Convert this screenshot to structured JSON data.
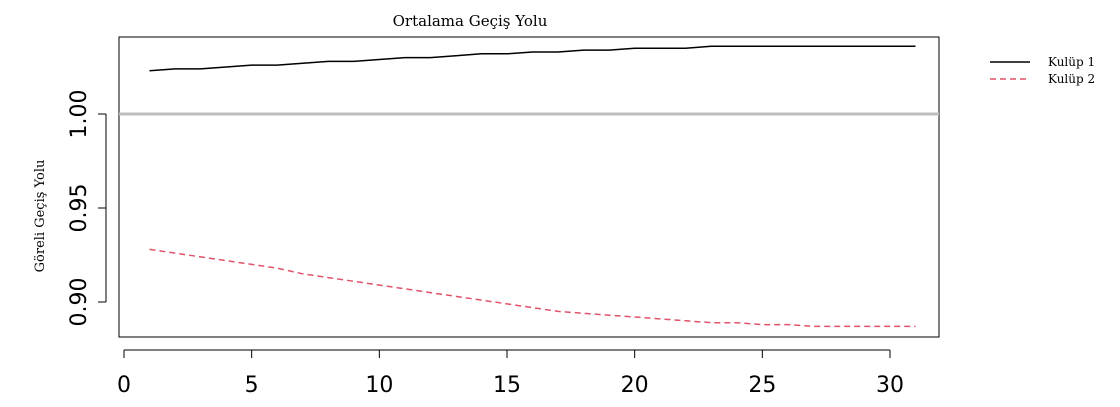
{
  "chart_data": {
    "type": "line",
    "title": "Ortalama Geçiş Yolu",
    "xlabel": "",
    "ylabel": "Göreli Geçiş Yolu",
    "xlim": [
      0,
      32
    ],
    "ylim": [
      0.885,
      1.042
    ],
    "x_ticks": [
      0,
      5,
      10,
      15,
      20,
      25,
      30
    ],
    "y_ticks": [
      0.9,
      0.95,
      1.0
    ],
    "y_tick_labels": [
      "0.90",
      "0.95",
      "1.00"
    ],
    "reference_line": {
      "y": 1.0,
      "color": "#bebebe"
    },
    "grid": false,
    "legend_position": "right",
    "series": [
      {
        "name": "Kulüp 1",
        "color": "#000000",
        "style": "solid",
        "x": [
          1,
          2,
          3,
          4,
          5,
          6,
          7,
          8,
          9,
          10,
          11,
          12,
          13,
          14,
          15,
          16,
          17,
          18,
          19,
          20,
          21,
          22,
          23,
          24,
          25,
          26,
          27,
          28,
          29,
          30,
          31
        ],
        "y": [
          1.023,
          1.024,
          1.024,
          1.025,
          1.026,
          1.026,
          1.027,
          1.028,
          1.028,
          1.029,
          1.03,
          1.03,
          1.031,
          1.032,
          1.032,
          1.033,
          1.033,
          1.034,
          1.034,
          1.035,
          1.035,
          1.035,
          1.036,
          1.036,
          1.036,
          1.036,
          1.036,
          1.036,
          1.036,
          1.036,
          1.036
        ]
      },
      {
        "name": "Kulüp 2",
        "color": "#df536b",
        "style": "dashed",
        "x": [
          1,
          2,
          3,
          4,
          5,
          6,
          7,
          8,
          9,
          10,
          11,
          12,
          13,
          14,
          15,
          16,
          17,
          18,
          19,
          20,
          21,
          22,
          23,
          24,
          25,
          26,
          27,
          28,
          29,
          30,
          31
        ],
        "y": [
          0.928,
          0.926,
          0.924,
          0.922,
          0.92,
          0.918,
          0.915,
          0.913,
          0.911,
          0.909,
          0.907,
          0.905,
          0.903,
          0.901,
          0.899,
          0.897,
          0.895,
          0.894,
          0.893,
          0.892,
          0.891,
          0.89,
          0.889,
          0.889,
          0.888,
          0.888,
          0.887,
          0.887,
          0.887,
          0.887,
          0.887
        ]
      }
    ]
  }
}
